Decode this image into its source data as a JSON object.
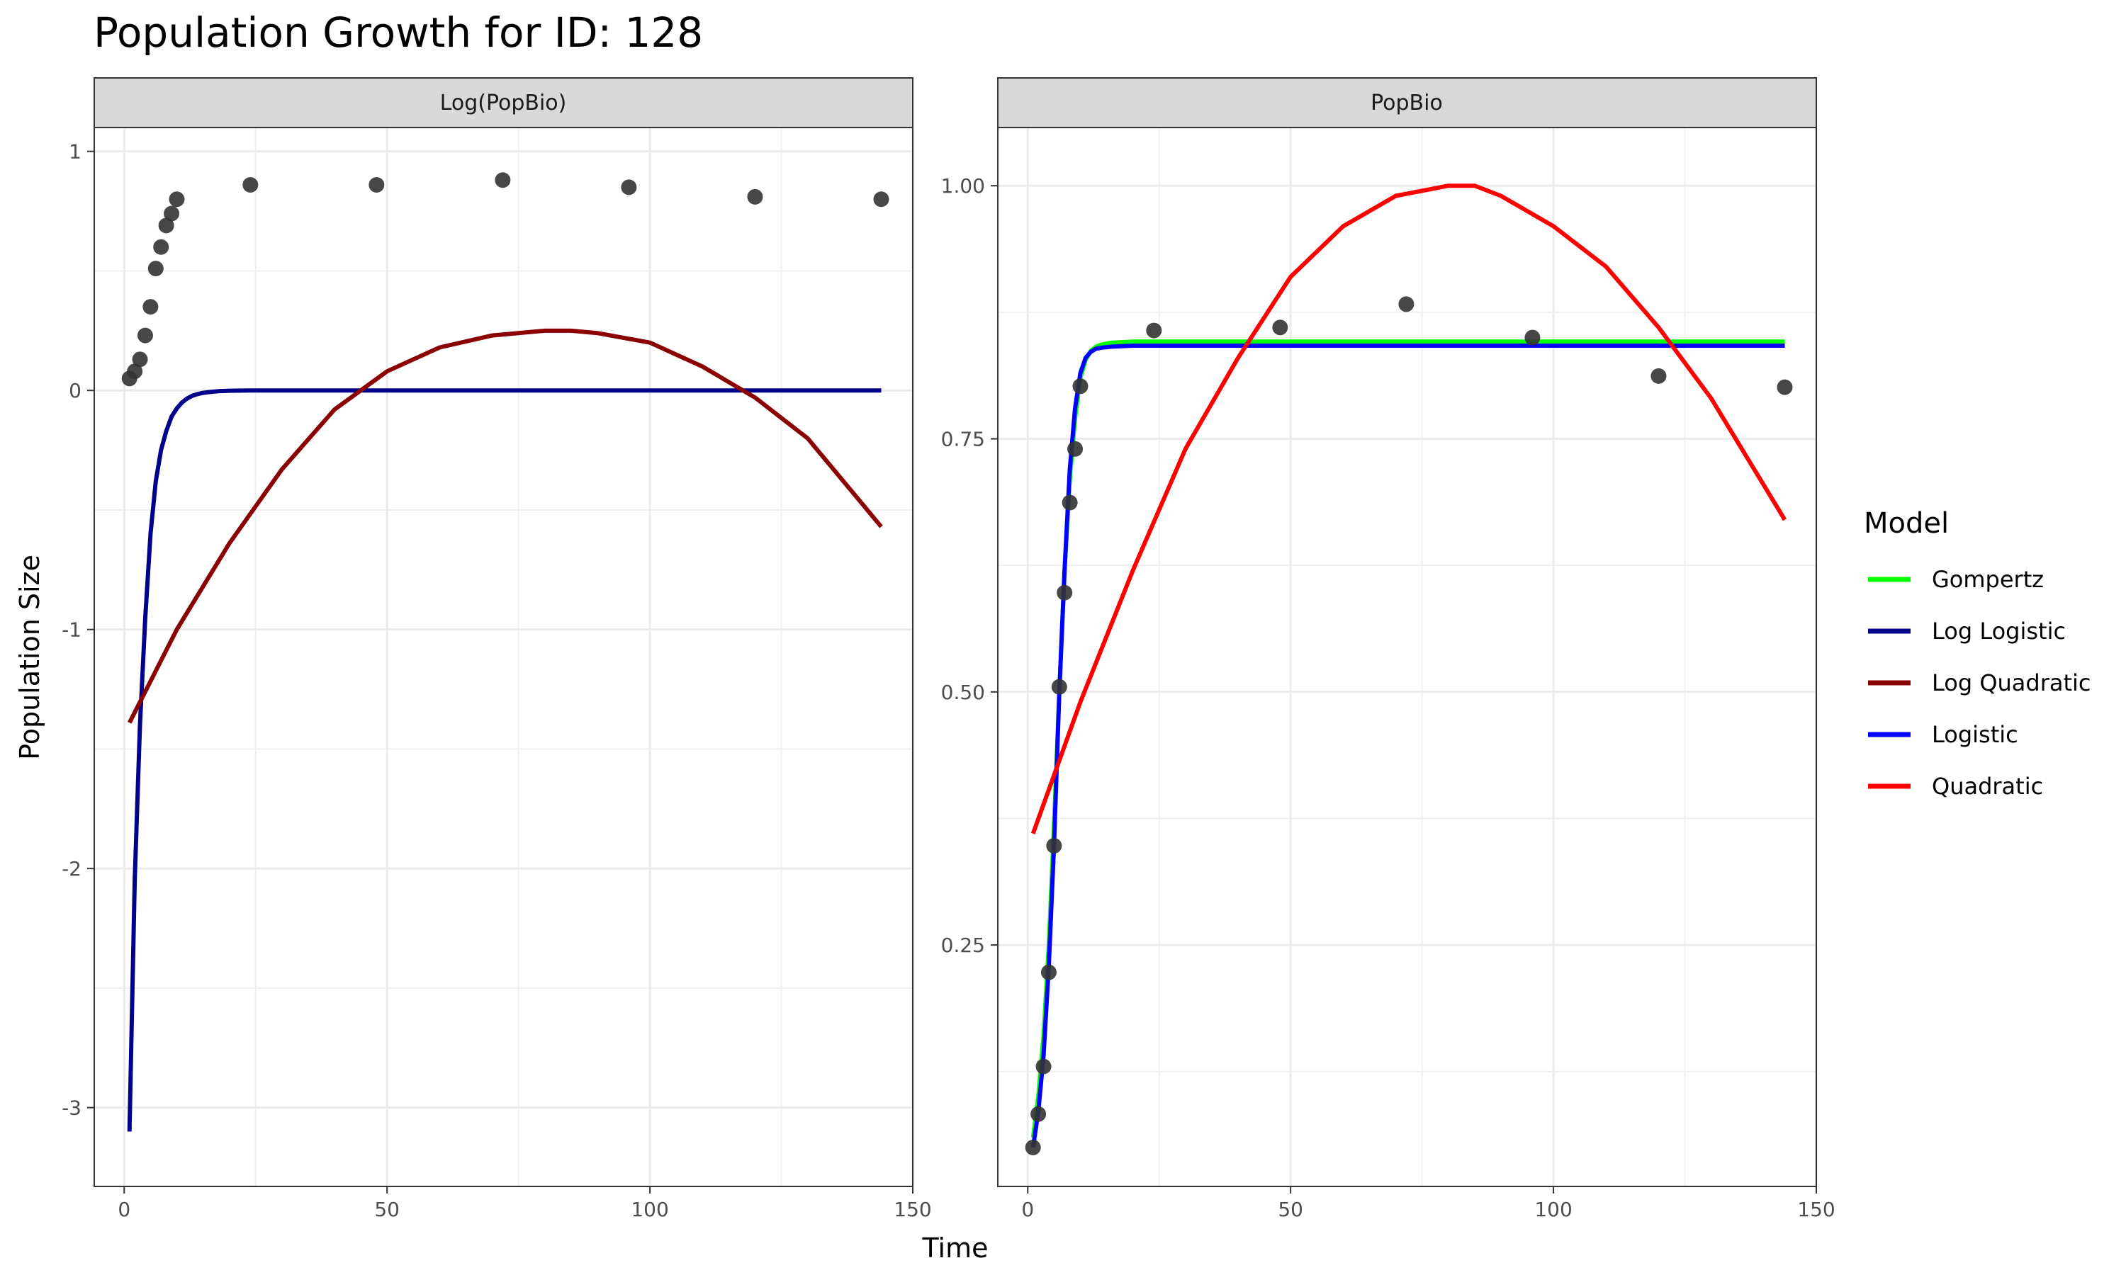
{
  "chart_data": {
    "type": "scatter",
    "title": "Population Growth for ID: 128",
    "xlabel": "Time",
    "ylabel": "Population Size",
    "legend": {
      "title": "Model",
      "position": "right",
      "entries": [
        {
          "name": "Gompertz",
          "color": "#00ff00"
        },
        {
          "name": "Log Logistic",
          "color": "#00008b"
        },
        {
          "name": "Log Quadratic",
          "color": "#8b0000"
        },
        {
          "name": "Logistic",
          "color": "#0000ff"
        },
        {
          "name": "Quadratic",
          "color": "#ff0000"
        }
      ]
    },
    "grid": true,
    "panels": [
      {
        "strip": "Log(PopBio)",
        "xlim": [
          -5.7,
          150
        ],
        "ylim": [
          -3.33,
          1.1
        ],
        "x_ticks": [
          0,
          50,
          100,
          150
        ],
        "y_ticks": [
          -3,
          -2,
          -1,
          0,
          1
        ],
        "y_tick_labels": [
          "-3",
          "-2",
          "-1",
          "0",
          "1"
        ],
        "points": {
          "x": [
            1,
            2,
            3,
            4,
            5,
            6,
            7,
            8,
            9,
            10,
            24,
            48,
            72,
            96,
            120,
            144
          ],
          "y": [
            0.05,
            0.08,
            0.13,
            0.23,
            0.35,
            0.51,
            0.6,
            0.69,
            0.74,
            0.8,
            0.86,
            0.86,
            0.88,
            0.85,
            0.81,
            0.8
          ]
        },
        "series": [
          {
            "name": "Log Logistic",
            "color": "#00008b",
            "x": [
              1,
              2,
              3,
              4,
              5,
              6,
              7,
              8,
              9,
              10,
              11,
              12,
              13,
              14,
              15,
              16,
              18,
              20,
              24,
              30,
              40,
              60,
              80,
              100,
              144
            ],
            "y": [
              -3.1,
              -2.05,
              -1.4,
              -0.95,
              -0.6,
              -0.38,
              -0.25,
              -0.17,
              -0.11,
              -0.075,
              -0.05,
              -0.033,
              -0.022,
              -0.015,
              -0.01,
              -0.007,
              -0.003,
              -0.001,
              0,
              0,
              0,
              0,
              0,
              0,
              0
            ]
          },
          {
            "name": "Log Quadratic",
            "color": "#8b0000",
            "x": [
              1,
              10,
              20,
              30,
              40,
              50,
              60,
              70,
              80,
              85,
              90,
              100,
              110,
              120,
              130,
              144
            ],
            "y": [
              -1.39,
              -1.0,
              -0.64,
              -0.33,
              -0.08,
              0.08,
              0.18,
              0.23,
              0.25,
              0.25,
              0.24,
              0.2,
              0.1,
              -0.03,
              -0.2,
              -0.57
            ]
          }
        ]
      },
      {
        "strip": "PopBio",
        "xlim": [
          -5.7,
          150
        ],
        "ylim": [
          0.0115,
          1.0575
        ],
        "x_ticks": [
          0,
          50,
          100,
          150
        ],
        "y_ticks": [
          0.25,
          0.5,
          0.75,
          1.0
        ],
        "y_tick_labels": [
          "0.25",
          "0.50",
          "0.75",
          "1.00"
        ],
        "points": {
          "x": [
            1,
            2,
            3,
            4,
            5,
            6,
            7,
            8,
            9,
            10,
            24,
            48,
            72,
            96,
            120,
            144
          ],
          "y": [
            0.05,
            0.083,
            0.13,
            0.223,
            0.348,
            0.505,
            0.598,
            0.687,
            0.74,
            0.802,
            0.857,
            0.86,
            0.883,
            0.85,
            0.812,
            0.801
          ]
        },
        "series": [
          {
            "name": "Gompertz",
            "color": "#00ff00",
            "x": [
              1,
              2,
              3,
              4,
              5,
              6,
              7,
              8,
              9,
              10,
              11,
              12,
              13,
              14,
              16,
              20,
              30,
              60,
              100,
              144
            ],
            "y": [
              0.06,
              0.1,
              0.16,
              0.25,
              0.37,
              0.5,
              0.62,
              0.71,
              0.77,
              0.81,
              0.828,
              0.837,
              0.841,
              0.843,
              0.845,
              0.846,
              0.846,
              0.846,
              0.846,
              0.846
            ]
          },
          {
            "name": "Logistic",
            "color": "#0000ff",
            "x": [
              1,
              2,
              3,
              4,
              5,
              6,
              7,
              8,
              9,
              10,
              11,
              12,
              13,
              14,
              16,
              20,
              30,
              60,
              100,
              144
            ],
            "y": [
              0.05,
              0.085,
              0.14,
              0.23,
              0.35,
              0.5,
              0.62,
              0.72,
              0.78,
              0.815,
              0.83,
              0.836,
              0.839,
              0.84,
              0.841,
              0.842,
              0.842,
              0.842,
              0.842,
              0.842
            ]
          },
          {
            "name": "Quadratic",
            "color": "#ff0000",
            "x": [
              1,
              10,
              20,
              30,
              40,
              50,
              60,
              70,
              80,
              85,
              90,
              100,
              110,
              120,
              130,
              144
            ],
            "y": [
              0.36,
              0.49,
              0.62,
              0.74,
              0.83,
              0.91,
              0.96,
              0.99,
              1.0,
              1.0,
              0.99,
              0.96,
              0.92,
              0.86,
              0.79,
              0.67
            ]
          }
        ]
      }
    ]
  }
}
